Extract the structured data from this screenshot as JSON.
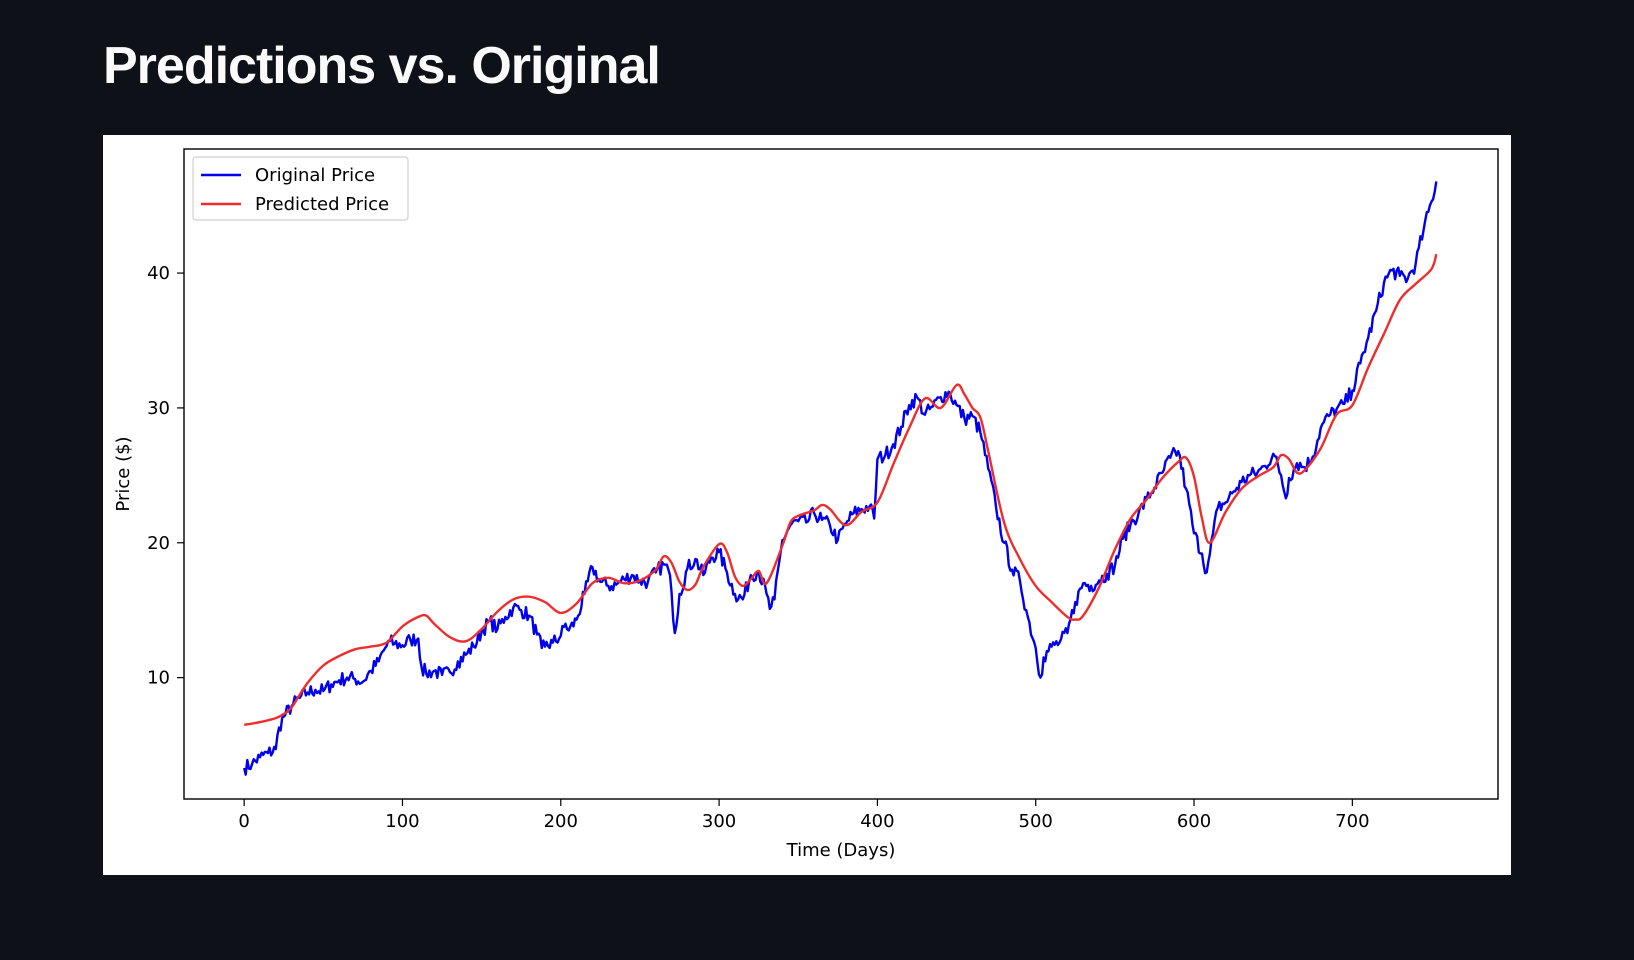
{
  "page": {
    "title": "Predictions vs. Original"
  },
  "chart_data": {
    "type": "line",
    "title": "",
    "xlabel": "Time (Days)",
    "ylabel": "Price ($)",
    "xlim": [
      -38,
      792
    ],
    "ylim": [
      1,
      49.2
    ],
    "xticks": [
      0,
      100,
      200,
      300,
      400,
      500,
      600,
      700
    ],
    "yticks": [
      10,
      20,
      30,
      40
    ],
    "legend_position": "top-left",
    "grid": false,
    "series": [
      {
        "name": "Original Price",
        "color": "#0000ee",
        "noise": 0.55,
        "x": [
          0,
          5,
          10,
          15,
          20,
          22,
          25,
          30,
          35,
          40,
          45,
          50,
          55,
          60,
          65,
          70,
          75,
          80,
          85,
          88,
          92,
          95,
          100,
          105,
          110,
          112,
          115,
          120,
          125,
          130,
          135,
          140,
          145,
          150,
          155,
          160,
          165,
          170,
          175,
          180,
          185,
          188,
          190,
          195,
          200,
          203,
          205,
          210,
          215,
          220,
          225,
          230,
          235,
          240,
          245,
          250,
          255,
          260,
          265,
          268,
          270,
          272,
          275,
          280,
          285,
          290,
          295,
          300,
          305,
          310,
          315,
          320,
          325,
          330,
          332,
          335,
          340,
          345,
          350,
          355,
          360,
          365,
          370,
          375,
          380,
          385,
          390,
          395,
          398,
          400,
          405,
          410,
          415,
          420,
          425,
          430,
          435,
          440,
          445,
          450,
          455,
          460,
          465,
          470,
          475,
          480,
          485,
          490,
          495,
          500,
          503,
          505,
          510,
          515,
          520,
          525,
          530,
          535,
          540,
          545,
          550,
          555,
          560,
          565,
          570,
          575,
          580,
          585,
          590,
          595,
          600,
          605,
          608,
          610,
          615,
          620,
          625,
          630,
          635,
          640,
          645,
          650,
          655,
          658,
          660,
          665,
          670,
          675,
          680,
          685,
          690,
          695,
          700,
          705,
          710,
          715,
          720,
          725,
          730,
          735,
          740,
          745,
          750,
          753
        ],
        "values": [
          3.3,
          3.6,
          4.1,
          4.4,
          4.7,
          6.3,
          7.1,
          7.9,
          8.5,
          8.9,
          9.1,
          9.0,
          9.5,
          9.8,
          10.0,
          9.9,
          9.7,
          10.5,
          11.2,
          12.0,
          12.7,
          12.5,
          12.4,
          12.8,
          12.9,
          10.8,
          10.3,
          10.5,
          10.2,
          10.4,
          11.2,
          11.7,
          12.3,
          13.4,
          14.2,
          13.6,
          14.5,
          15.2,
          15.0,
          14.6,
          13.2,
          12.2,
          12.3,
          12.6,
          13.1,
          14.0,
          13.5,
          14.3,
          16.2,
          18.2,
          17.1,
          16.8,
          16.9,
          17.3,
          17.6,
          17.2,
          17.1,
          17.8,
          18.4,
          18.0,
          16.3,
          13.3,
          16.2,
          18.1,
          18.8,
          17.6,
          18.9,
          19.3,
          17.8,
          16.2,
          15.8,
          17.6,
          17.9,
          16.2,
          15.1,
          15.8,
          20.2,
          21.3,
          21.6,
          21.5,
          22.2,
          21.7,
          21.3,
          20.2,
          21.4,
          22.2,
          22.5,
          22.7,
          21.8,
          26.2,
          26.5,
          27.3,
          28.6,
          30.2,
          30.8,
          29.5,
          30.1,
          30.8,
          31.2,
          30.2,
          29.2,
          29.4,
          28.2,
          25.5,
          22.6,
          20.0,
          18.0,
          17.2,
          14.5,
          12.2,
          10.0,
          11.5,
          12.3,
          12.6,
          13.3,
          15.6,
          17.0,
          16.8,
          17.2,
          17.7,
          18.3,
          20.3,
          21.4,
          22.2,
          23.2,
          24.1,
          25.2,
          26.3,
          26.8,
          24.0,
          20.7,
          19.2,
          17.8,
          19.2,
          22.6,
          23.0,
          23.8,
          24.5,
          25.0,
          25.2,
          25.7,
          26.6,
          25.0,
          23.3,
          24.8,
          25.9,
          25.6,
          26.4,
          28.5,
          29.4,
          29.9,
          30.3,
          31.3,
          33.3,
          35.2,
          37.2,
          39.3,
          40.2,
          39.8,
          39.6,
          40.7,
          43.2,
          45.3,
          46.8
        ]
      },
      {
        "name": "Predicted Price",
        "color": "#ee2d2d",
        "noise": 0,
        "x": [
          0,
          10,
          20,
          25,
          30,
          40,
          50,
          60,
          70,
          80,
          90,
          100,
          110,
          115,
          120,
          130,
          140,
          150,
          160,
          170,
          180,
          190,
          200,
          210,
          220,
          230,
          240,
          250,
          260,
          265,
          270,
          275,
          280,
          285,
          290,
          300,
          305,
          310,
          315,
          320,
          325,
          330,
          340,
          345,
          350,
          360,
          365,
          370,
          380,
          390,
          400,
          410,
          420,
          430,
          440,
          450,
          455,
          460,
          465,
          470,
          480,
          490,
          500,
          510,
          520,
          525,
          530,
          540,
          550,
          560,
          570,
          580,
          590,
          595,
          600,
          605,
          610,
          620,
          630,
          640,
          650,
          655,
          660,
          665,
          670,
          680,
          690,
          700,
          710,
          720,
          730,
          740,
          750,
          753
        ],
        "values": [
          6.5,
          6.7,
          7.0,
          7.3,
          7.8,
          9.6,
          10.9,
          11.6,
          12.1,
          12.3,
          12.6,
          13.8,
          14.5,
          14.6,
          14.0,
          13.0,
          12.7,
          13.6,
          14.9,
          15.8,
          16.0,
          15.6,
          14.8,
          15.5,
          17.0,
          17.4,
          17.0,
          17.2,
          18.0,
          19.0,
          18.5,
          17.1,
          16.5,
          16.9,
          18.2,
          19.9,
          19.3,
          17.5,
          16.8,
          17.3,
          17.9,
          17.0,
          19.8,
          21.5,
          22.0,
          22.4,
          22.8,
          22.5,
          21.3,
          22.3,
          23.0,
          25.8,
          28.5,
          30.7,
          30.0,
          31.7,
          31.0,
          30.0,
          29.3,
          26.8,
          21.5,
          18.8,
          16.8,
          15.6,
          14.5,
          14.3,
          14.6,
          16.7,
          19.5,
          21.8,
          23.2,
          24.8,
          26.0,
          26.3,
          24.9,
          21.8,
          20.0,
          22.3,
          24.0,
          24.9,
          25.6,
          26.5,
          26.2,
          25.2,
          25.4,
          27.0,
          29.5,
          30.2,
          33.0,
          35.5,
          38.0,
          39.2,
          40.3,
          41.4
        ]
      }
    ]
  }
}
